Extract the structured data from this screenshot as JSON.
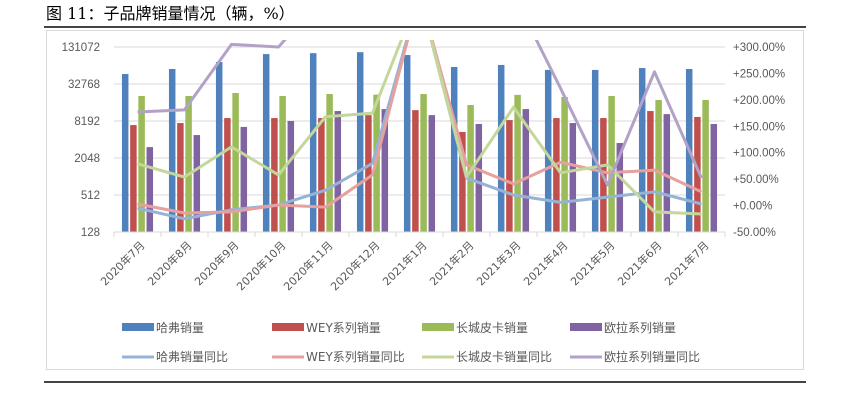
{
  "title": "图 11：子品牌销量情况（辆，%）",
  "chart_data": {
    "type": "bar+line",
    "title": "图 11：子品牌销量情况（辆，%）",
    "categories": [
      "2020年7月",
      "2020年8月",
      "2020年9月",
      "2020年10月",
      "2020年11月",
      "2020年12月",
      "2021年1月",
      "2021年2月",
      "2021年3月",
      "2021年4月",
      "2021年5月",
      "2021年6月",
      "2021年7月"
    ],
    "left_axis": {
      "scale": "log2",
      "ylim": [
        128,
        131072
      ],
      "ticks": [
        "131072",
        "32768",
        "8192",
        "2048",
        "512",
        "128"
      ]
    },
    "right_axis": {
      "ylim": [
        -50,
        300
      ],
      "ticks": [
        "+300.00%",
        "+250.00%",
        "+200.00%",
        "+150.00%",
        "+100.00%",
        "+50.00%",
        "+0.00%",
        "-50.00%"
      ]
    },
    "grid": true,
    "legend_position": "bottom",
    "bar_series": [
      {
        "name": "哈弗销量",
        "color": "#4f81bd",
        "values": [
          47600,
          57500,
          74800,
          100500,
          104000,
          108000,
          97000,
          62000,
          66900,
          55500,
          55500,
          59500,
          57500
        ]
      },
      {
        "name": "WEY系列销量",
        "color": "#c0504d",
        "values": [
          7030,
          7590,
          9150,
          9150,
          9150,
          10200,
          12300,
          5440,
          8480,
          9150,
          9150,
          11900,
          9530
        ]
      },
      {
        "name": "长城皮卡销量",
        "color": "#9bbb59",
        "values": [
          20900,
          20900,
          23400,
          20900,
          22500,
          22000,
          22500,
          14900,
          21800,
          20200,
          20900,
          18000,
          18000
        ]
      },
      {
        "name": "欧拉系列销量",
        "color": "#8064a2",
        "values": [
          3080,
          4840,
          6560,
          8190,
          11900,
          12800,
          10200,
          7330,
          12800,
          7590,
          3590,
          10600,
          7330
        ]
      }
    ],
    "line_series": [
      {
        "name": "哈弗销量同比",
        "color": "#95b3d7",
        "values": [
          -5,
          -25,
          -8,
          1,
          29,
          80,
          400,
          52,
          20,
          6,
          16,
          26,
          3
        ]
      },
      {
        "name": "WEY系列销量同比",
        "color": "#e6a09e",
        "values": [
          3,
          -14,
          -12,
          1,
          -3,
          58,
          400,
          77,
          41,
          82,
          62,
          67,
          26
        ]
      },
      {
        "name": "长城皮卡销量同比",
        "color": "#c4d79b",
        "values": [
          79,
          54,
          111,
          58,
          168,
          175,
          400,
          54,
          186,
          62,
          77,
          -12,
          -16
        ]
      },
      {
        "name": "欧拉系列销量同比",
        "color": "#b3a2c7",
        "values": [
          177,
          181,
          305,
          300,
          400,
          400,
          400,
          400,
          400,
          222,
          39,
          253,
          52
        ]
      }
    ]
  }
}
